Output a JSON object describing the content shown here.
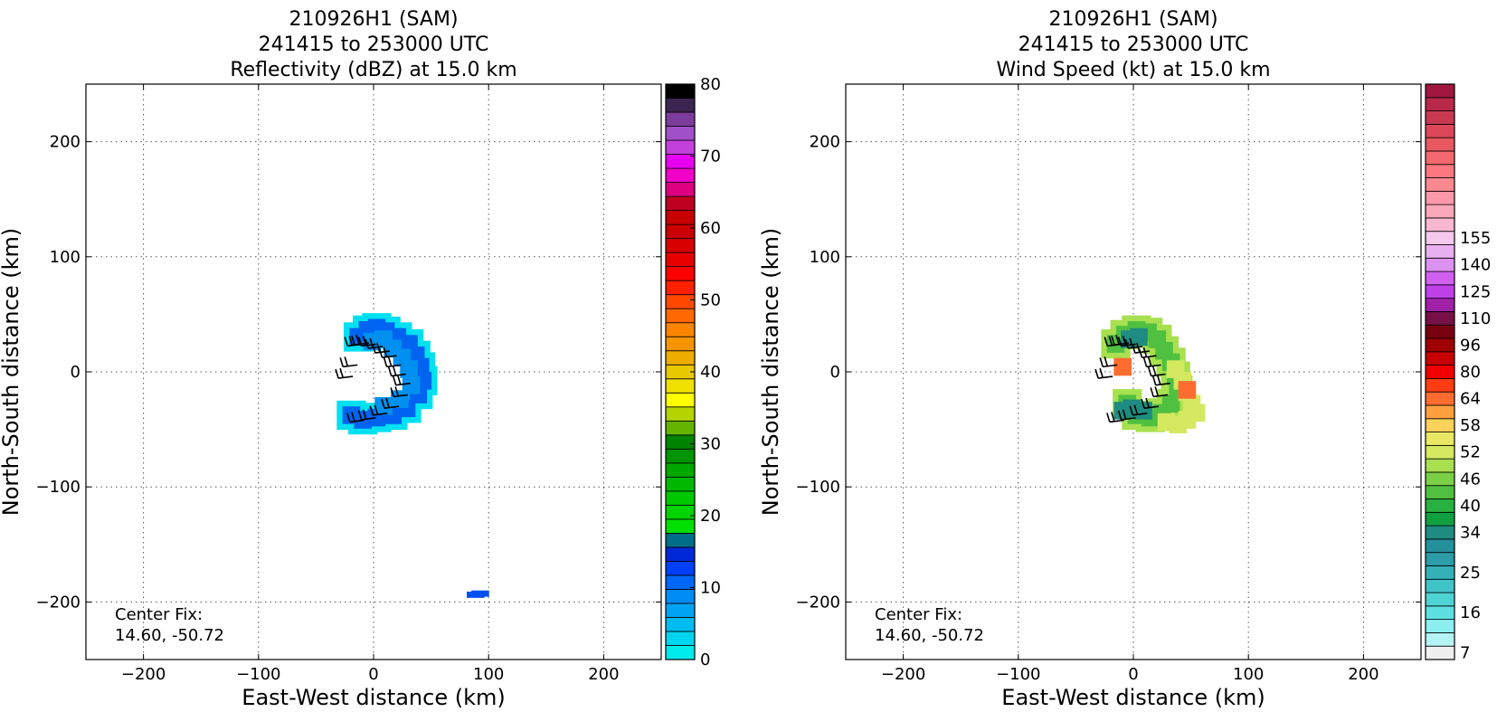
{
  "chart_data": [
    {
      "type": "heatmap",
      "title_lines": [
        "210926H1 (SAM)",
        "241415 to 253000 UTC",
        "Reflectivity (dBZ) at 15.0 km"
      ],
      "xlabel": "East-West distance (km)",
      "ylabel": "North-South distance (km)",
      "xlim": [
        -250,
        250
      ],
      "ylim": [
        -250,
        250
      ],
      "xticks": [
        -200,
        -100,
        0,
        100,
        200
      ],
      "yticks": [
        -200,
        -100,
        0,
        100,
        200
      ],
      "x_tick_labels": [
        "−200",
        "−100",
        "0",
        "100",
        "200"
      ],
      "y_tick_labels": [
        "−200",
        "−100",
        "0",
        "100",
        "200"
      ],
      "grid": true,
      "note_lines": [
        "Center Fix:",
        "14.60, -50.72"
      ],
      "colorbar": {
        "min": 0,
        "max": 80,
        "tick_values": [
          0,
          10,
          20,
          30,
          40,
          50,
          60,
          70,
          80
        ],
        "tick_labels": [
          "0",
          "10",
          "20",
          "30",
          "40",
          "50",
          "60",
          "70",
          "80"
        ],
        "colors": [
          "#00ebeb",
          "#00d4ee",
          "#00bcf0",
          "#00a4f2",
          "#008cf5",
          "#0068f8",
          "#0040f8",
          "#0028d8",
          "#006e88",
          "#00e000",
          "#00d400",
          "#00c800",
          "#00b800",
          "#00a800",
          "#009400",
          "#008400",
          "#64b400",
          "#b4d400",
          "#ffff00",
          "#f0e000",
          "#e8c800",
          "#ecac00",
          "#f49400",
          "#fc8400",
          "#ff6800",
          "#ff4800",
          "#ff2000",
          "#ff0000",
          "#e60000",
          "#d80000",
          "#cc0000",
          "#c80000",
          "#c00020",
          "#dc0080",
          "#f000c8",
          "#e800f0",
          "#c440dc",
          "#a050c8",
          "#7c3c9c",
          "#3c2450",
          "#000000"
        ]
      },
      "field_color": "#00e0f0",
      "series": [
        {
          "name": "core",
          "color": "#0064f0",
          "points": [
            [
              -16,
              28
            ],
            [
              -8,
              34
            ],
            [
              0,
              36
            ],
            [
              8,
              33
            ],
            [
              18,
              28
            ],
            [
              28,
              22
            ],
            [
              34,
              12
            ],
            [
              38,
              2
            ],
            [
              40,
              -10
            ],
            [
              36,
              -22
            ],
            [
              26,
              -34
            ],
            [
              14,
              -40
            ],
            [
              0,
              -42
            ],
            [
              -12,
              -44
            ],
            [
              -22,
              -40
            ]
          ]
        },
        {
          "name": "inner",
          "color": "#0090f0",
          "points": [
            [
              -4,
              24
            ],
            [
              6,
              26
            ],
            [
              14,
              18
            ],
            [
              22,
              10
            ],
            [
              28,
              0
            ],
            [
              30,
              -14
            ],
            [
              20,
              -26
            ],
            [
              6,
              -32
            ]
          ]
        },
        {
          "name": "stray",
          "color": "#0050f0",
          "points": [
            [
              86,
              -196
            ],
            [
              90,
              -195
            ]
          ]
        }
      ],
      "barbs": [
        [
          -10,
          24
        ],
        [
          -4,
          25
        ],
        [
          2,
          24
        ],
        [
          8,
          22
        ],
        [
          14,
          18
        ],
        [
          20,
          14
        ],
        [
          24,
          6
        ],
        [
          28,
          -2
        ],
        [
          32,
          -10
        ],
        [
          30,
          -20
        ],
        [
          22,
          -30
        ],
        [
          12,
          -36
        ],
        [
          2,
          -40
        ],
        [
          -8,
          -42
        ],
        [
          -18,
          -4
        ],
        [
          -14,
          6
        ]
      ]
    },
    {
      "type": "heatmap",
      "title_lines": [
        "210926H1 (SAM)",
        "241415 to 253000 UTC",
        "Wind Speed (kt) at 15.0 km"
      ],
      "xlabel": "East-West distance (km)",
      "ylabel": "North-South distance (km)",
      "xlim": [
        -250,
        250
      ],
      "ylim": [
        -250,
        250
      ],
      "xticks": [
        -200,
        -100,
        0,
        100,
        200
      ],
      "yticks": [
        -200,
        -100,
        0,
        100,
        200
      ],
      "x_tick_labels": [
        "−200",
        "−100",
        "0",
        "100",
        "200"
      ],
      "y_tick_labels": [
        "−200",
        "−100",
        "0",
        "100",
        "200"
      ],
      "grid": true,
      "note_lines": [
        "Center Fix:",
        "14.60, -50.72"
      ],
      "colorbar": {
        "tick_labels": [
          "7",
          "16",
          "25",
          "34",
          "40",
          "46",
          "52",
          "58",
          "64",
          "80",
          "96",
          "110",
          "125",
          "140",
          "155"
        ],
        "tick_bins": [
          0,
          3,
          6,
          9,
          11,
          13,
          15,
          17,
          19,
          21,
          23,
          25,
          27,
          29,
          31
        ],
        "colors": [
          "#f0f0f0",
          "#b4f4f4",
          "#8ceeee",
          "#5ee0e0",
          "#4ed4d4",
          "#40c4c8",
          "#34b0b8",
          "#2c9ca8",
          "#24909c",
          "#1e8c80",
          "#10a040",
          "#28b040",
          "#50c040",
          "#7cd048",
          "#a8e050",
          "#d4e860",
          "#e8e864",
          "#fcd25a",
          "#ffa040",
          "#ff6c30",
          "#ff3c14",
          "#f00000",
          "#c80000",
          "#a00000",
          "#780010",
          "#781048",
          "#a020a8",
          "#c040e8",
          "#d060f0",
          "#dc90f0",
          "#e8b0f0",
          "#f4c8ec",
          "#f8b8d0",
          "#fca8bc",
          "#fc98a8",
          "#fc8890",
          "#fc7880",
          "#f46870",
          "#e85860",
          "#dc4858",
          "#c83850",
          "#b82848",
          "#a01840"
        ]
      },
      "field_color": "#a8e050",
      "series": [
        {
          "name": "core",
          "color": "#50c040",
          "points": [
            [
              -18,
              22
            ],
            [
              -10,
              30
            ],
            [
              0,
              34
            ],
            [
              10,
              32
            ],
            [
              18,
              26
            ],
            [
              24,
              16
            ],
            [
              30,
              6
            ],
            [
              34,
              -6
            ],
            [
              36,
              -18
            ],
            [
              30,
              -30
            ],
            [
              22,
              -38
            ],
            [
              12,
              -42
            ],
            [
              0,
              -40
            ],
            [
              -8,
              -30
            ]
          ]
        },
        {
          "name": "outer",
          "color": "#d4e860",
          "points": [
            [
              34,
              0
            ],
            [
              40,
              -10
            ],
            [
              44,
              -20
            ],
            [
              48,
              -30
            ],
            [
              52,
              -38
            ],
            [
              44,
              -44
            ],
            [
              36,
              -48
            ],
            [
              26,
              -46
            ]
          ]
        },
        {
          "name": "teal",
          "color": "#1e8c80",
          "points": [
            [
              -6,
              26
            ],
            [
              2,
              28
            ],
            [
              -4,
              -34
            ],
            [
              6,
              -36
            ],
            [
              -12,
              -36
            ]
          ]
        },
        {
          "name": "hot",
          "color": "#ff6c30",
          "points": [
            [
              -12,
              2
            ],
            [
              44,
              -18
            ]
          ]
        }
      ],
      "barbs": [
        [
          -10,
          24
        ],
        [
          -4,
          25
        ],
        [
          2,
          24
        ],
        [
          8,
          22
        ],
        [
          14,
          18
        ],
        [
          20,
          14
        ],
        [
          24,
          6
        ],
        [
          28,
          -2
        ],
        [
          32,
          -10
        ],
        [
          30,
          -20
        ],
        [
          22,
          -30
        ],
        [
          12,
          -36
        ],
        [
          2,
          -40
        ],
        [
          -8,
          -42
        ],
        [
          -18,
          -4
        ],
        [
          -14,
          6
        ]
      ]
    }
  ]
}
